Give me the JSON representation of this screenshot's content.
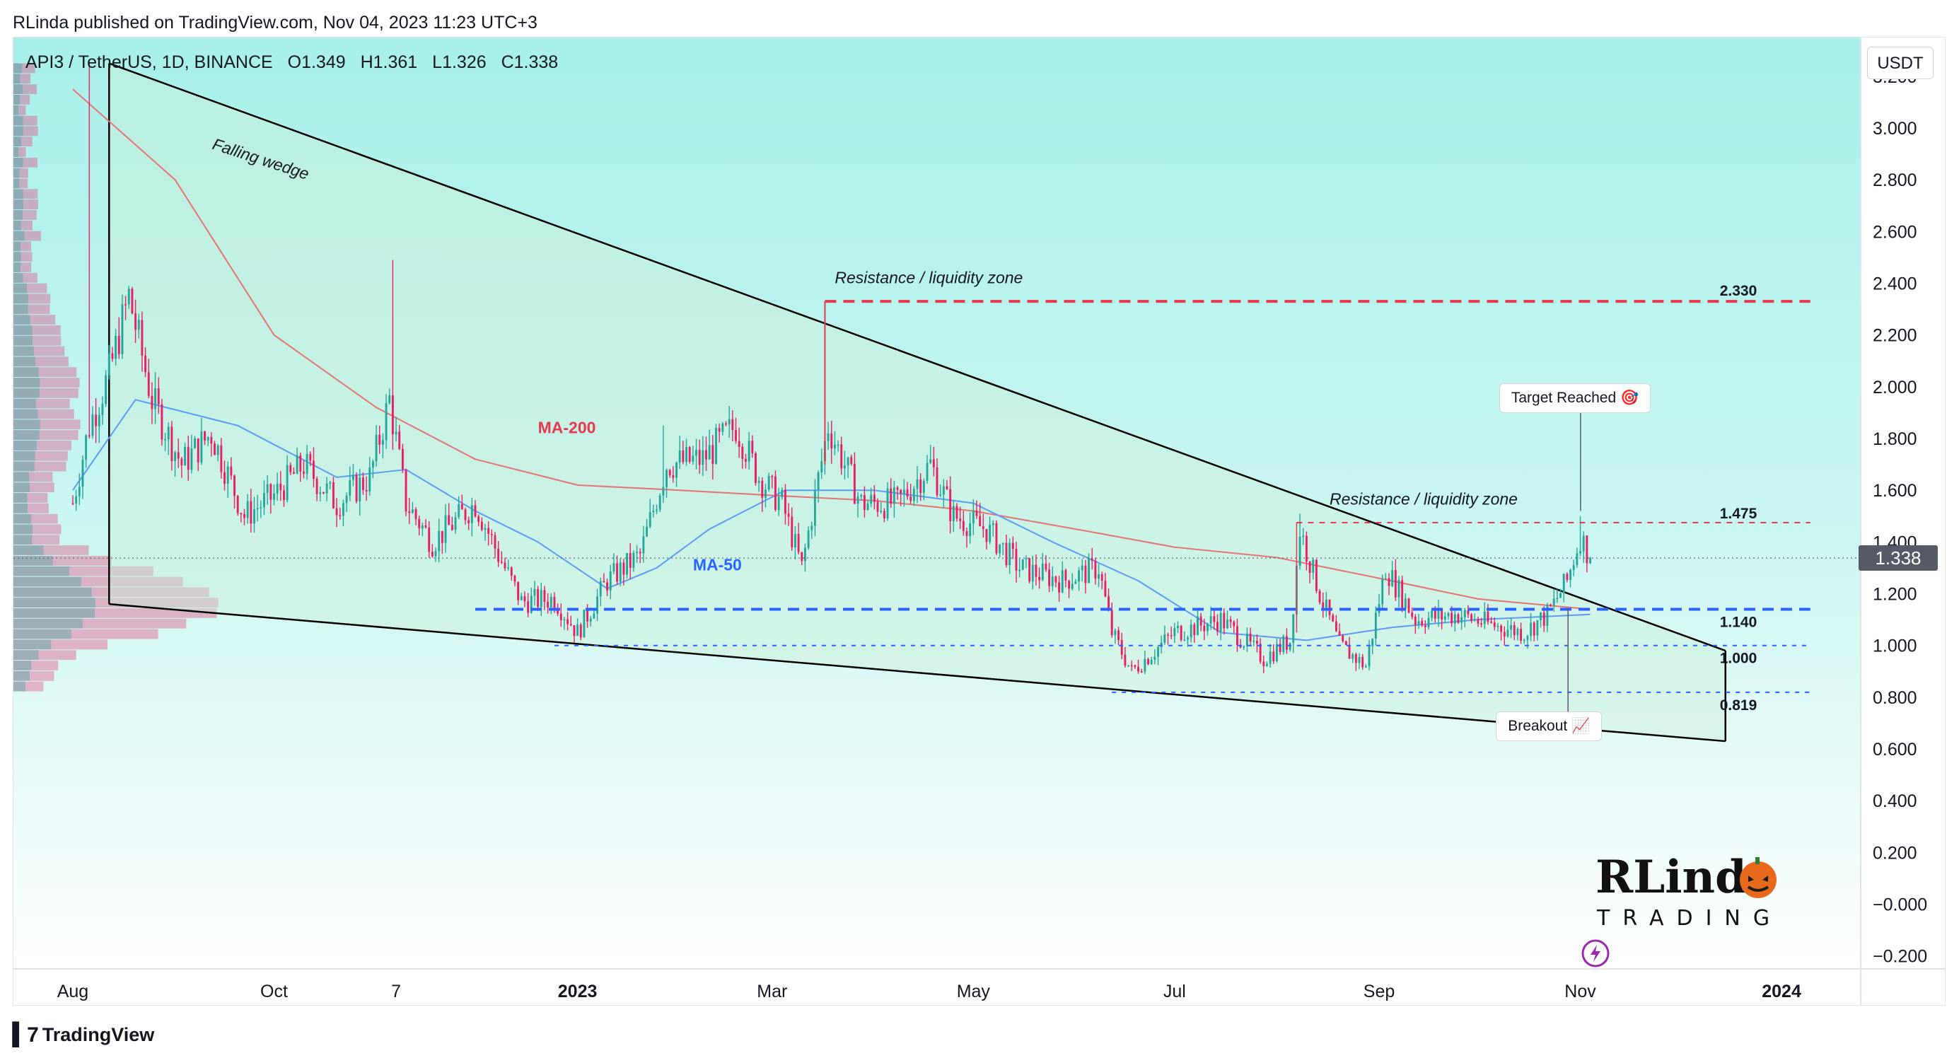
{
  "publish_line": "RLinda published on TradingView.com, Nov 04, 2023 11:23 UTC+3",
  "symbol": {
    "name": "API3 / TetherUS, 1D, BINANCE",
    "open": "O1.349",
    "high": "H1.361",
    "low": "L1.326",
    "close": "C1.338"
  },
  "currency_button": "USDT",
  "brand": "TradingView",
  "last_price_label": "1.338",
  "logo_text": {
    "top": "RLinda",
    "bottom": "TRADING"
  },
  "colors": {
    "bull": "#26a69a",
    "bear": "#e91e63",
    "ma200": "#e57373",
    "ma50": "#5b9cf2",
    "level_blue": "#2962ff",
    "level_red": "#e53950",
    "wedge": "#000000"
  },
  "chart_data": {
    "type": "candlestick",
    "timeframe": "1D",
    "y_axis": {
      "ticks": [
        "3.200",
        "3.000",
        "2.800",
        "2.600",
        "2.400",
        "2.200",
        "2.000",
        "1.800",
        "1.600",
        "1.400",
        "1.200",
        "1.000",
        "0.800",
        "0.600",
        "0.400",
        "0.200",
        "−0.000",
        "−0.200"
      ],
      "ylim": [
        -0.25,
        3.35
      ]
    },
    "x_axis": {
      "ticks": [
        {
          "label": "Aug",
          "date": "2022-08-01",
          "bold": false
        },
        {
          "label": "Oct",
          "date": "2022-10-01",
          "bold": false
        },
        {
          "label": "7",
          "date": "2022-11-07",
          "bold": false
        },
        {
          "label": "2023",
          "date": "2023-01-01",
          "bold": true
        },
        {
          "label": "Mar",
          "date": "2023-03-01",
          "bold": false
        },
        {
          "label": "May",
          "date": "2023-05-01",
          "bold": false
        },
        {
          "label": "Jul",
          "date": "2023-07-01",
          "bold": false
        },
        {
          "label": "Sep",
          "date": "2023-09-01",
          "bold": false
        },
        {
          "label": "Nov",
          "date": "2023-11-01",
          "bold": false
        },
        {
          "label": "2024",
          "date": "2024-01-01",
          "bold": true
        }
      ]
    },
    "price_path": [
      [
        "2022-08-01",
        1.55
      ],
      [
        "2022-08-06",
        1.85
      ],
      [
        "2022-08-12",
        2.05
      ],
      [
        "2022-08-18",
        2.35
      ],
      [
        "2022-08-25",
        1.95
      ],
      [
        "2022-09-03",
        1.7
      ],
      [
        "2022-09-12",
        1.82
      ],
      [
        "2022-09-22",
        1.5
      ],
      [
        "2022-10-01",
        1.58
      ],
      [
        "2022-10-10",
        1.7
      ],
      [
        "2022-10-20",
        1.55
      ],
      [
        "2022-10-30",
        1.65
      ],
      [
        "2022-11-05",
        1.95
      ],
      [
        "2022-11-10",
        1.55
      ],
      [
        "2022-11-18",
        1.4
      ],
      [
        "2022-12-01",
        1.55
      ],
      [
        "2022-12-08",
        1.35
      ],
      [
        "2022-12-15",
        1.17
      ],
      [
        "2022-12-25",
        1.18
      ],
      [
        "2023-01-01",
        1.05
      ],
      [
        "2023-01-10",
        1.25
      ],
      [
        "2023-01-20",
        1.35
      ],
      [
        "2023-01-28",
        1.7
      ],
      [
        "2023-02-08",
        1.72
      ],
      [
        "2023-02-18",
        1.85
      ],
      [
        "2023-02-25",
        1.65
      ],
      [
        "2023-03-04",
        1.55
      ],
      [
        "2023-03-10",
        1.3
      ],
      [
        "2023-03-18",
        1.85
      ],
      [
        "2023-03-28",
        1.55
      ],
      [
        "2023-04-08",
        1.55
      ],
      [
        "2023-04-18",
        1.7
      ],
      [
        "2023-04-25",
        1.5
      ],
      [
        "2023-05-05",
        1.45
      ],
      [
        "2023-05-15",
        1.3
      ],
      [
        "2023-05-28",
        1.25
      ],
      [
        "2023-06-08",
        1.3
      ],
      [
        "2023-06-12",
        1.05
      ],
      [
        "2023-06-18",
        0.9
      ],
      [
        "2023-07-01",
        1.05
      ],
      [
        "2023-07-15",
        1.1
      ],
      [
        "2023-07-28",
        0.95
      ],
      [
        "2023-08-05",
        1.02
      ],
      [
        "2023-08-08",
        1.45
      ],
      [
        "2023-08-14",
        1.2
      ],
      [
        "2023-08-20",
        1.0
      ],
      [
        "2023-08-28",
        0.92
      ],
      [
        "2023-09-03",
        1.3
      ],
      [
        "2023-09-12",
        1.1
      ],
      [
        "2023-09-25",
        1.12
      ],
      [
        "2023-10-05",
        1.08
      ],
      [
        "2023-10-15",
        1.05
      ],
      [
        "2023-10-22",
        1.12
      ],
      [
        "2023-10-28",
        1.25
      ],
      [
        "2023-11-01",
        1.42
      ],
      [
        "2023-11-04",
        1.338
      ]
    ],
    "moving_averages": [
      {
        "name": "MA-200",
        "points": [
          [
            "2022-08-01",
            3.15
          ],
          [
            "2022-09-01",
            2.8
          ],
          [
            "2022-10-01",
            2.2
          ],
          [
            "2022-11-01",
            1.92
          ],
          [
            "2022-12-01",
            1.72
          ],
          [
            "2023-01-01",
            1.62
          ],
          [
            "2023-02-01",
            1.6
          ],
          [
            "2023-03-01",
            1.58
          ],
          [
            "2023-04-01",
            1.56
          ],
          [
            "2023-05-01",
            1.52
          ],
          [
            "2023-06-01",
            1.45
          ],
          [
            "2023-07-01",
            1.38
          ],
          [
            "2023-08-01",
            1.34
          ],
          [
            "2023-09-01",
            1.26
          ],
          [
            "2023-10-01",
            1.18
          ],
          [
            "2023-11-04",
            1.14
          ]
        ]
      },
      {
        "name": "MA-50",
        "points": [
          [
            "2022-08-01",
            1.6
          ],
          [
            "2022-08-20",
            1.95
          ],
          [
            "2022-09-20",
            1.85
          ],
          [
            "2022-10-20",
            1.65
          ],
          [
            "2022-11-10",
            1.68
          ],
          [
            "2022-12-01",
            1.52
          ],
          [
            "2022-12-20",
            1.4
          ],
          [
            "2023-01-10",
            1.22
          ],
          [
            "2023-01-25",
            1.3
          ],
          [
            "2023-02-10",
            1.45
          ],
          [
            "2023-03-05",
            1.6
          ],
          [
            "2023-04-01",
            1.6
          ],
          [
            "2023-05-01",
            1.55
          ],
          [
            "2023-05-25",
            1.4
          ],
          [
            "2023-06-20",
            1.25
          ],
          [
            "2023-07-15",
            1.05
          ],
          [
            "2023-08-10",
            1.02
          ],
          [
            "2023-09-05",
            1.07
          ],
          [
            "2023-10-01",
            1.1
          ],
          [
            "2023-11-04",
            1.12
          ]
        ]
      }
    ],
    "horizontal_levels": [
      {
        "value": 2.33,
        "label": "2.330",
        "start": "2023-03-17",
        "end": "2023-12-15",
        "style": "red-dashed-thick"
      },
      {
        "value": 1.475,
        "label": "1.475",
        "start": "2023-08-07",
        "end": "2023-12-15",
        "style": "red-dashed-thin"
      },
      {
        "value": 1.14,
        "label": "1.140",
        "start": "2022-12-01",
        "end": "2023-12-15",
        "style": "blue-dashed-thick"
      },
      {
        "value": 1.0,
        "label": "1.000",
        "start": "2022-12-25",
        "end": "2023-12-15",
        "style": "blue-dashed-thin"
      },
      {
        "value": 0.819,
        "label": "0.819",
        "start": "2023-06-12",
        "end": "2023-12-15",
        "style": "blue-dashed-thin"
      }
    ],
    "wedge": {
      "upper": [
        [
          "2022-08-12",
          3.25
        ],
        [
          "2023-12-15",
          0.98
        ]
      ],
      "lower": [
        [
          "2022-08-12",
          1.16
        ],
        [
          "2023-12-15",
          0.63
        ]
      ]
    },
    "annotations": [
      {
        "text": "Falling wedge",
        "date": "2022-09-12",
        "value": 2.92,
        "rotate": 18,
        "italic": true
      },
      {
        "text": "Resistance / liquidity zone",
        "date": "2023-03-20",
        "value": 2.4,
        "italic": true
      },
      {
        "text": "Resistance / liquidity zone",
        "date": "2023-08-17",
        "value": 1.545,
        "italic": true
      },
      {
        "text": "MA-200",
        "date": "2022-12-20",
        "value": 1.82,
        "color": "#e53950"
      },
      {
        "text": "MA-50",
        "date": "2023-02-05",
        "value": 1.29,
        "color": "#2962ff"
      }
    ],
    "callouts": [
      {
        "text": "Target Reached 🎯",
        "date": "2023-10-31",
        "value": 1.96,
        "pointer_value": 1.52
      },
      {
        "text": "Breakout 📈",
        "date": "2023-10-30",
        "value": 0.69,
        "pointer_value": 1.14
      }
    ],
    "last_price": 1.338,
    "volume_profile": {
      "price_start": 0.82,
      "price_end": 3.25,
      "bins": 60,
      "peak_value": 1.14
    }
  }
}
